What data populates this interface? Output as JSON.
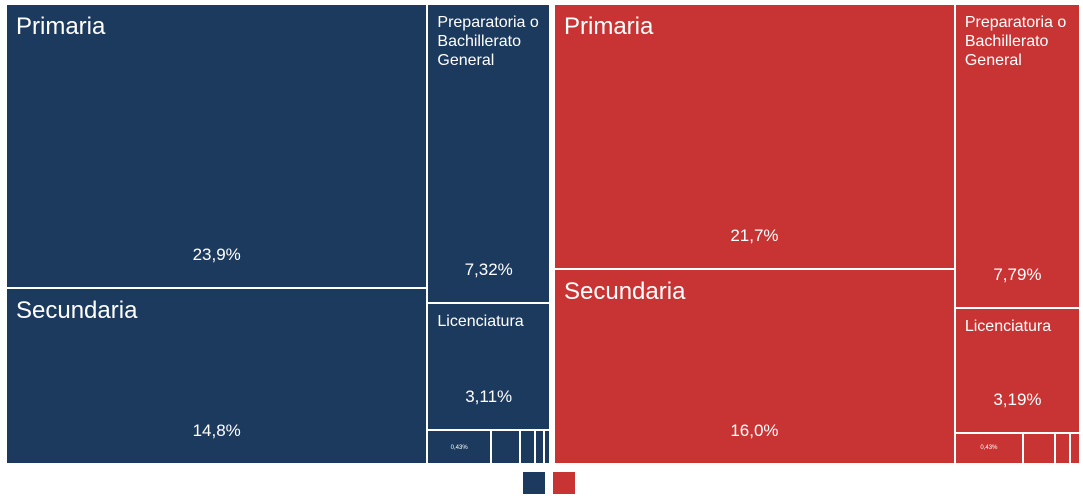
{
  "chart_data": {
    "type": "treemap",
    "series": [
      {
        "color": "#1c3a5e",
        "categories": [
          "Primaria",
          "Secundaria",
          "Preparatoria o Bachillerato General",
          "Licenciatura",
          null,
          null,
          null,
          null,
          null
        ],
        "values": [
          23.9,
          14.8,
          7.32,
          3.11,
          0.43,
          0.2,
          0.1,
          0.06,
          0.04
        ],
        "value_labels": [
          "23,9%",
          "14,8%",
          "7,32%",
          "3,11%",
          "0,43%",
          null,
          null,
          null,
          null
        ]
      },
      {
        "color": "#c83433",
        "categories": [
          "Primaria",
          "Secundaria",
          "Preparatoria o Bachillerato General",
          "Licenciatura",
          null,
          null,
          null,
          null
        ],
        "values": [
          21.7,
          16.0,
          7.79,
          3.19,
          0.43,
          0.2,
          0.1,
          0.06
        ],
        "value_labels": [
          "21,7%",
          "16,0%",
          "7,79%",
          "3,19%",
          "0,43%",
          null,
          null,
          null
        ]
      }
    ]
  }
}
